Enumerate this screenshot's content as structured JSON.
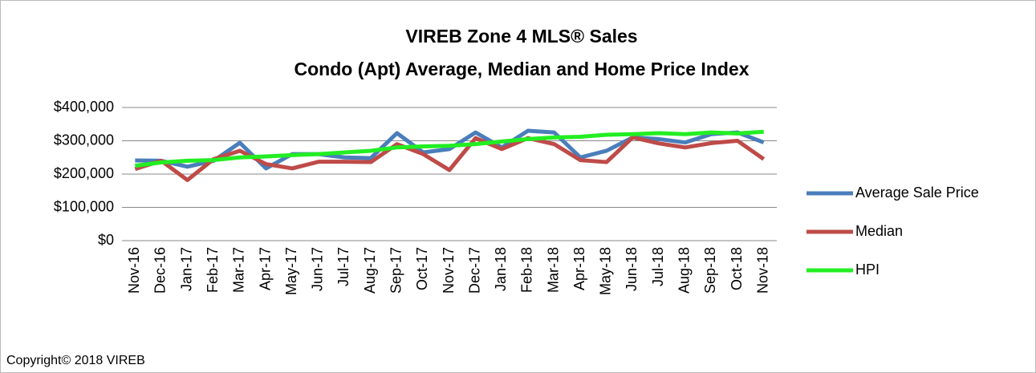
{
  "chart_data": {
    "type": "line",
    "title": "VIREB Zone 4 MLS® Sales",
    "subtitle": "Condo (Apt) Average, Median and Home Price Index",
    "categories": [
      "Nov-16",
      "Dec-16",
      "Jan-17",
      "Feb-17",
      "Mar-17",
      "Apr-17",
      "May-17",
      "Jun-17",
      "Jul-17",
      "Aug-17",
      "Sep-17",
      "Oct-17",
      "Nov-17",
      "Dec-17",
      "Jan-18",
      "Feb-18",
      "Mar-18",
      "Apr-18",
      "May-18",
      "Jun-18",
      "Jul-18",
      "Aug-18",
      "Sep-18",
      "Oct-18",
      "Nov-18"
    ],
    "series": [
      {
        "name": "Average Sale Price",
        "color": "#4a7ebb",
        "values": [
          241000,
          240000,
          222000,
          240000,
          294000,
          217000,
          260000,
          260000,
          250000,
          248000,
          323000,
          265000,
          275000,
          325000,
          280000,
          330000,
          325000,
          250000,
          270000,
          310000,
          305000,
          295000,
          320000,
          325000,
          295000
        ]
      },
      {
        "name": "Median",
        "color": "#be4b48",
        "values": [
          215000,
          240000,
          182000,
          245000,
          270000,
          230000,
          217000,
          237000,
          237000,
          236000,
          290000,
          260000,
          212000,
          308000,
          275000,
          308000,
          290000,
          242000,
          236000,
          310000,
          292000,
          280000,
          293000,
          300000,
          245000
        ]
      },
      {
        "name": "HPI",
        "color": "#22ee22",
        "values": [
          225000,
          235000,
          240000,
          242000,
          250000,
          253000,
          257000,
          260000,
          265000,
          270000,
          280000,
          283000,
          285000,
          290000,
          298000,
          305000,
          310000,
          312000,
          318000,
          320000,
          323000,
          320000,
          325000,
          322000,
          327000
        ]
      }
    ],
    "ylim": [
      0,
      400000
    ],
    "yticks": [
      {
        "value": 0,
        "label": "$0"
      },
      {
        "value": 100000,
        "label": "$100,000"
      },
      {
        "value": 200000,
        "label": "$200,000"
      },
      {
        "value": 300000,
        "label": "$300,000"
      },
      {
        "value": 400000,
        "label": "$400,000"
      }
    ],
    "grid": true,
    "legend": "right",
    "copyright": "Copyright© 2018 VIREB"
  }
}
